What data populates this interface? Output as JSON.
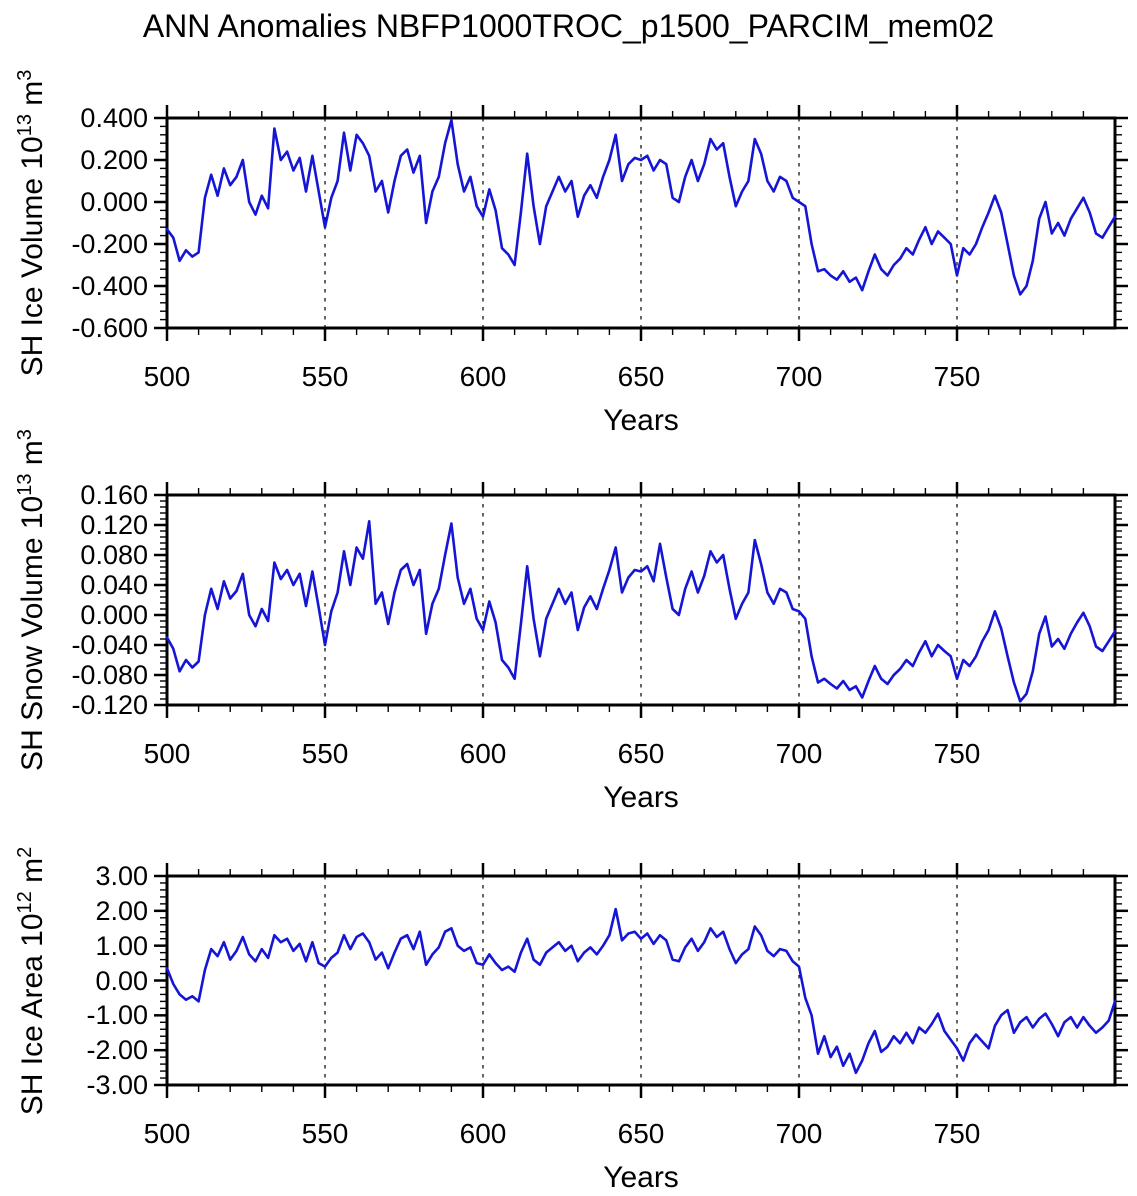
{
  "page_title": "ANN Anomalies NBFP1000TROC_p1500_PARCIM_mem02",
  "line_color": "#1515d6",
  "axis_color": "#000000",
  "background_color": "#ffffff",
  "chart_data": [
    {
      "type": "line",
      "name": "sh-ice-volume",
      "ylabel_parts": [
        {
          "text": "SH Ice Volume 10"
        },
        {
          "sup": "13"
        },
        {
          "text": " m"
        },
        {
          "sup": "3"
        }
      ],
      "xlabel": "Years",
      "xlim": [
        500,
        800
      ],
      "ylim": [
        -0.6,
        0.4
      ],
      "xticks": [
        500,
        550,
        600,
        650,
        700,
        750
      ],
      "xtick_labels": [
        "500",
        "550",
        "600",
        "650",
        "700",
        "750"
      ],
      "x_minor_step": 10,
      "yticks": [
        0.4,
        0.2,
        0.0,
        -0.2,
        -0.4,
        -0.6
      ],
      "ytick_labels": [
        "0.400",
        "0.200",
        "0.000",
        "-0.200",
        "-0.400",
        "-0.600"
      ],
      "y_minor_step": 0.04,
      "gridline_years": [
        550,
        600,
        650,
        700,
        750
      ],
      "grid_style": "vertical-dashed",
      "legend": "none",
      "x_start": 500,
      "x_step": 2,
      "values": [
        -0.13,
        -0.17,
        -0.28,
        -0.23,
        -0.26,
        -0.24,
        0.02,
        0.13,
        0.03,
        0.16,
        0.08,
        0.12,
        0.2,
        0.0,
        -0.06,
        0.03,
        -0.03,
        0.35,
        0.2,
        0.24,
        0.15,
        0.21,
        0.05,
        0.22,
        0.05,
        -0.12,
        0.02,
        0.1,
        0.33,
        0.15,
        0.32,
        0.28,
        0.22,
        0.05,
        0.1,
        -0.05,
        0.1,
        0.22,
        0.25,
        0.14,
        0.22,
        -0.1,
        0.05,
        0.12,
        0.28,
        0.39,
        0.18,
        0.05,
        0.12,
        -0.02,
        -0.07,
        0.06,
        -0.04,
        -0.22,
        -0.25,
        -0.3,
        -0.05,
        0.23,
        -0.02,
        -0.2,
        -0.02,
        0.05,
        0.12,
        0.05,
        0.1,
        -0.07,
        0.03,
        0.08,
        0.02,
        0.12,
        0.2,
        0.32,
        0.1,
        0.18,
        0.21,
        0.2,
        0.22,
        0.15,
        0.2,
        0.18,
        0.02,
        0.0,
        0.12,
        0.2,
        0.1,
        0.18,
        0.3,
        0.25,
        0.28,
        0.12,
        -0.02,
        0.05,
        0.1,
        0.3,
        0.23,
        0.1,
        0.05,
        0.12,
        0.1,
        0.02,
        0.0,
        -0.02,
        -0.2,
        -0.33,
        -0.32,
        -0.35,
        -0.37,
        -0.33,
        -0.38,
        -0.36,
        -0.42,
        -0.33,
        -0.25,
        -0.32,
        -0.35,
        -0.3,
        -0.27,
        -0.22,
        -0.25,
        -0.18,
        -0.12,
        -0.2,
        -0.14,
        -0.17,
        -0.2,
        -0.35,
        -0.22,
        -0.25,
        -0.2,
        -0.12,
        -0.05,
        0.03,
        -0.05,
        -0.2,
        -0.35,
        -0.44,
        -0.4,
        -0.28,
        -0.08,
        0.0,
        -0.15,
        -0.1,
        -0.16,
        -0.08,
        -0.03,
        0.02,
        -0.05,
        -0.15,
        -0.17,
        -0.12,
        -0.07
      ]
    },
    {
      "type": "line",
      "name": "sh-snow-volume",
      "ylabel_parts": [
        {
          "text": "SH Snow Volume 10"
        },
        {
          "sup": "13"
        },
        {
          "text": " m"
        },
        {
          "sup": "3"
        }
      ],
      "xlabel": "Years",
      "xlim": [
        500,
        800
      ],
      "ylim": [
        -0.12,
        0.16
      ],
      "xticks": [
        500,
        550,
        600,
        650,
        700,
        750
      ],
      "xtick_labels": [
        "500",
        "550",
        "600",
        "650",
        "700",
        "750"
      ],
      "x_minor_step": 10,
      "yticks": [
        0.16,
        0.12,
        0.08,
        0.04,
        0.0,
        -0.04,
        -0.08,
        -0.12
      ],
      "ytick_labels": [
        "0.160",
        "0.120",
        "0.080",
        "0.040",
        "0.000",
        "-0.040",
        "-0.080",
        "-0.120"
      ],
      "y_minor_step": 0.008,
      "gridline_years": [
        550,
        600,
        650,
        700,
        750
      ],
      "grid_style": "vertical-dashed",
      "legend": "none",
      "x_start": 500,
      "x_step": 2,
      "values": [
        -0.03,
        -0.045,
        -0.075,
        -0.06,
        -0.07,
        -0.062,
        0.0,
        0.035,
        0.008,
        0.045,
        0.022,
        0.032,
        0.055,
        0.0,
        -0.015,
        0.008,
        -0.008,
        0.07,
        0.048,
        0.06,
        0.04,
        0.055,
        0.012,
        0.058,
        0.01,
        -0.04,
        0.005,
        0.03,
        0.085,
        0.04,
        0.09,
        0.075,
        0.125,
        0.015,
        0.03,
        -0.012,
        0.03,
        0.06,
        0.068,
        0.04,
        0.06,
        -0.025,
        0.015,
        0.035,
        0.08,
        0.122,
        0.05,
        0.015,
        0.035,
        -0.005,
        -0.02,
        0.018,
        -0.01,
        -0.06,
        -0.07,
        -0.085,
        -0.012,
        0.065,
        -0.005,
        -0.055,
        -0.005,
        0.015,
        0.035,
        0.015,
        0.03,
        -0.02,
        0.01,
        0.025,
        0.008,
        0.035,
        0.06,
        0.09,
        0.03,
        0.05,
        0.06,
        0.058,
        0.065,
        0.045,
        0.095,
        0.05,
        0.008,
        0.0,
        0.035,
        0.058,
        0.03,
        0.052,
        0.085,
        0.07,
        0.08,
        0.035,
        -0.005,
        0.015,
        0.03,
        0.1,
        0.068,
        0.03,
        0.015,
        0.035,
        0.03,
        0.008,
        0.005,
        -0.005,
        -0.055,
        -0.09,
        -0.085,
        -0.092,
        -0.098,
        -0.088,
        -0.1,
        -0.095,
        -0.11,
        -0.088,
        -0.068,
        -0.085,
        -0.092,
        -0.08,
        -0.072,
        -0.06,
        -0.068,
        -0.05,
        -0.035,
        -0.055,
        -0.04,
        -0.048,
        -0.055,
        -0.085,
        -0.06,
        -0.068,
        -0.055,
        -0.035,
        -0.02,
        0.005,
        -0.018,
        -0.055,
        -0.09,
        -0.115,
        -0.105,
        -0.075,
        -0.025,
        -0.002,
        -0.042,
        -0.032,
        -0.045,
        -0.025,
        -0.01,
        0.003,
        -0.015,
        -0.042,
        -0.048,
        -0.035,
        -0.022
      ]
    },
    {
      "type": "line",
      "name": "sh-ice-area",
      "ylabel_parts": [
        {
          "text": "SH Ice Area 10"
        },
        {
          "sup": "12"
        },
        {
          "text": " m"
        },
        {
          "sup": "2"
        }
      ],
      "xlabel": "Years",
      "xlim": [
        500,
        800
      ],
      "ylim": [
        -3.0,
        3.0
      ],
      "xticks": [
        500,
        550,
        600,
        650,
        700,
        750
      ],
      "xtick_labels": [
        "500",
        "550",
        "600",
        "650",
        "700",
        "750"
      ],
      "x_minor_step": 10,
      "yticks": [
        3.0,
        2.0,
        1.0,
        0.0,
        -1.0,
        -2.0,
        -3.0
      ],
      "ytick_labels": [
        "3.00",
        "2.00",
        "1.00",
        "0.00",
        "-1.00",
        "-2.00",
        "-3.00"
      ],
      "y_minor_step": 0.2,
      "gridline_years": [
        550,
        600,
        650,
        700,
        750
      ],
      "grid_style": "vertical-dashed",
      "legend": "none",
      "x_start": 500,
      "x_step": 2,
      "values": [
        0.35,
        -0.1,
        -0.4,
        -0.55,
        -0.45,
        -0.6,
        0.3,
        0.9,
        0.7,
        1.1,
        0.6,
        0.85,
        1.25,
        0.75,
        0.55,
        0.9,
        0.65,
        1.3,
        1.1,
        1.2,
        0.85,
        1.05,
        0.55,
        1.1,
        0.5,
        0.4,
        0.65,
        0.8,
        1.3,
        0.9,
        1.25,
        1.35,
        1.1,
        0.6,
        0.8,
        0.35,
        0.8,
        1.2,
        1.3,
        0.9,
        1.4,
        0.45,
        0.75,
        0.95,
        1.4,
        1.5,
        1.0,
        0.85,
        0.95,
        0.5,
        0.45,
        0.75,
        0.5,
        0.3,
        0.4,
        0.25,
        0.8,
        1.2,
        0.6,
        0.45,
        0.8,
        0.95,
        1.1,
        0.85,
        1.0,
        0.55,
        0.8,
        0.95,
        0.75,
        1.0,
        1.3,
        2.05,
        1.15,
        1.35,
        1.4,
        1.2,
        1.35,
        1.05,
        1.3,
        1.15,
        0.6,
        0.55,
        0.95,
        1.2,
        0.85,
        1.1,
        1.5,
        1.25,
        1.4,
        0.9,
        0.5,
        0.75,
        0.9,
        1.55,
        1.3,
        0.85,
        0.7,
        0.9,
        0.85,
        0.55,
        0.4,
        -0.5,
        -1.0,
        -2.1,
        -1.6,
        -2.2,
        -1.9,
        -2.45,
        -2.1,
        -2.65,
        -2.3,
        -1.8,
        -1.45,
        -2.05,
        -1.9,
        -1.6,
        -1.8,
        -1.5,
        -1.8,
        -1.35,
        -1.5,
        -1.25,
        -0.95,
        -1.45,
        -1.7,
        -1.95,
        -2.3,
        -1.8,
        -1.55,
        -1.75,
        -1.95,
        -1.3,
        -1.0,
        -0.85,
        -1.5,
        -1.2,
        -1.05,
        -1.35,
        -1.1,
        -0.95,
        -1.25,
        -1.6,
        -1.2,
        -1.05,
        -1.35,
        -1.05,
        -1.3,
        -1.5,
        -1.35,
        -1.15,
        -0.6
      ]
    }
  ]
}
